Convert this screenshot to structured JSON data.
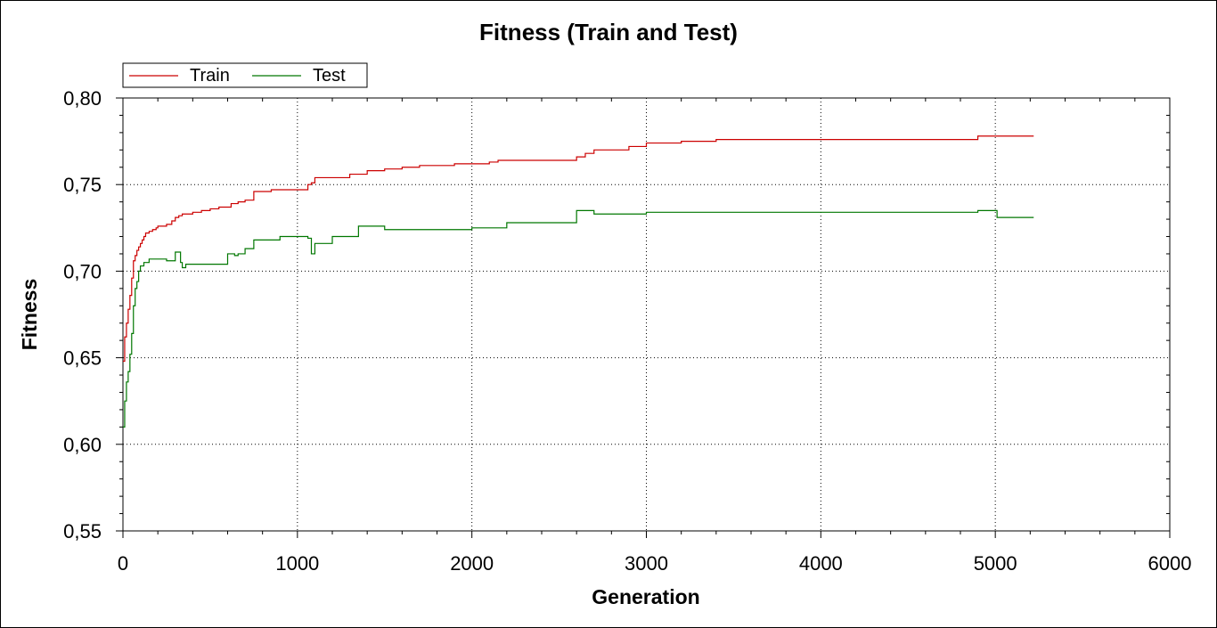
{
  "chart_data": {
    "type": "line",
    "title": "Fitness (Train and Test)",
    "xlabel": "Generation",
    "ylabel": "Fitness",
    "xlim": [
      0,
      6000
    ],
    "ylim": [
      0.55,
      0.8
    ],
    "xticks": [
      0,
      1000,
      2000,
      3000,
      4000,
      5000,
      6000
    ],
    "xtick_labels": [
      "0",
      "1000",
      "2000",
      "3000",
      "4000",
      "5000",
      "6000"
    ],
    "yticks": [
      0.55,
      0.6,
      0.65,
      0.7,
      0.75,
      0.8
    ],
    "ytick_labels": [
      "0,55",
      "0,60",
      "0,65",
      "0,70",
      "0,75",
      "0,80"
    ],
    "grid": true,
    "legend_position": "top-left",
    "series": [
      {
        "name": "Train",
        "color": "#cc0000",
        "x": [
          0,
          10,
          20,
          30,
          40,
          50,
          60,
          70,
          80,
          90,
          100,
          110,
          120,
          130,
          150,
          170,
          190,
          200,
          220,
          250,
          280,
          300,
          320,
          340,
          360,
          400,
          450,
          500,
          550,
          620,
          660,
          700,
          750,
          800,
          850,
          900,
          1000,
          1060,
          1080,
          1100,
          1150,
          1200,
          1300,
          1350,
          1400,
          1450,
          1500,
          1600,
          1700,
          1800,
          1900,
          2000,
          2100,
          2150,
          2200,
          2400,
          2550,
          2600,
          2650,
          2700,
          2900,
          3000,
          3200,
          3400,
          3600,
          4000,
          4500,
          4850,
          4900,
          5000,
          5100,
          5220
        ],
        "y": [
          0.648,
          0.662,
          0.67,
          0.678,
          0.686,
          0.696,
          0.706,
          0.709,
          0.712,
          0.714,
          0.716,
          0.718,
          0.72,
          0.722,
          0.723,
          0.724,
          0.725,
          0.726,
          0.726,
          0.727,
          0.729,
          0.731,
          0.732,
          0.733,
          0.733,
          0.734,
          0.735,
          0.736,
          0.737,
          0.739,
          0.74,
          0.741,
          0.746,
          0.746,
          0.747,
          0.747,
          0.747,
          0.75,
          0.751,
          0.754,
          0.754,
          0.754,
          0.756,
          0.756,
          0.758,
          0.758,
          0.759,
          0.76,
          0.761,
          0.761,
          0.762,
          0.762,
          0.763,
          0.764,
          0.764,
          0.764,
          0.764,
          0.766,
          0.768,
          0.77,
          0.772,
          0.774,
          0.775,
          0.776,
          0.776,
          0.776,
          0.776,
          0.776,
          0.778,
          0.778,
          0.778,
          0.778
        ]
      },
      {
        "name": "Test",
        "color": "#007700",
        "x": [
          0,
          10,
          20,
          30,
          40,
          50,
          60,
          70,
          80,
          90,
          100,
          120,
          150,
          180,
          200,
          250,
          280,
          300,
          320,
          330,
          340,
          360,
          400,
          500,
          590,
          600,
          640,
          660,
          700,
          750,
          800,
          900,
          1000,
          1050,
          1060,
          1080,
          1100,
          1200,
          1300,
          1350,
          1400,
          1450,
          1500,
          1700,
          2000,
          2100,
          2200,
          2400,
          2500,
          2550,
          2600,
          2650,
          2700,
          2900,
          3000,
          3400,
          4000,
          4500,
          4800,
          4900,
          5000,
          5010,
          5100,
          5220
        ],
        "y": [
          0.61,
          0.625,
          0.636,
          0.642,
          0.652,
          0.664,
          0.68,
          0.69,
          0.694,
          0.7,
          0.703,
          0.705,
          0.707,
          0.707,
          0.707,
          0.706,
          0.706,
          0.711,
          0.711,
          0.705,
          0.702,
          0.704,
          0.704,
          0.704,
          0.704,
          0.71,
          0.709,
          0.71,
          0.713,
          0.718,
          0.718,
          0.72,
          0.72,
          0.72,
          0.719,
          0.71,
          0.716,
          0.72,
          0.72,
          0.726,
          0.726,
          0.726,
          0.724,
          0.724,
          0.725,
          0.725,
          0.728,
          0.728,
          0.728,
          0.728,
          0.735,
          0.735,
          0.733,
          0.733,
          0.734,
          0.734,
          0.734,
          0.734,
          0.734,
          0.735,
          0.735,
          0.731,
          0.731,
          0.731
        ]
      }
    ]
  }
}
